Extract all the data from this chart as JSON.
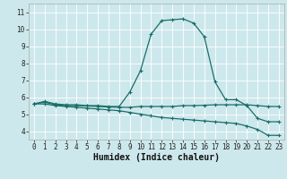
{
  "xlabel": "Humidex (Indice chaleur)",
  "bg_color": "#cde8ec",
  "grid_color": "#b8d8dc",
  "line_color": "#1a6e6a",
  "xlim": [
    -0.5,
    23.5
  ],
  "ylim": [
    3.5,
    11.5
  ],
  "xticks": [
    0,
    1,
    2,
    3,
    4,
    5,
    6,
    7,
    8,
    9,
    10,
    11,
    12,
    13,
    14,
    15,
    16,
    17,
    18,
    19,
    20,
    21,
    22,
    23
  ],
  "yticks": [
    4,
    5,
    6,
    7,
    8,
    9,
    10,
    11
  ],
  "curve1_x": [
    0,
    1,
    2,
    3,
    4,
    5,
    6,
    7,
    8,
    9,
    10,
    11,
    12,
    13,
    14,
    15,
    16,
    17,
    18,
    19,
    20,
    21,
    22,
    23
  ],
  "curve1_y": [
    5.6,
    5.75,
    5.6,
    5.55,
    5.55,
    5.5,
    5.5,
    5.45,
    5.45,
    6.3,
    7.55,
    9.7,
    10.5,
    10.55,
    10.6,
    10.35,
    9.55,
    6.9,
    5.85,
    5.85,
    5.5,
    4.75,
    4.55,
    4.55
  ],
  "curve2_x": [
    0,
    1,
    2,
    3,
    4,
    5,
    6,
    7,
    8,
    9,
    10,
    11,
    12,
    13,
    14,
    15,
    16,
    17,
    18,
    19,
    20,
    21,
    22,
    23
  ],
  "curve2_y": [
    5.6,
    5.7,
    5.55,
    5.5,
    5.5,
    5.48,
    5.45,
    5.42,
    5.4,
    5.4,
    5.45,
    5.45,
    5.45,
    5.45,
    5.5,
    5.5,
    5.52,
    5.55,
    5.55,
    5.55,
    5.55,
    5.5,
    5.45,
    5.45
  ],
  "curve3_x": [
    0,
    1,
    2,
    3,
    4,
    5,
    6,
    7,
    8,
    9,
    10,
    11,
    12,
    13,
    14,
    15,
    16,
    17,
    18,
    19,
    20,
    21,
    22,
    23
  ],
  "curve3_y": [
    5.6,
    5.6,
    5.5,
    5.45,
    5.4,
    5.35,
    5.3,
    5.25,
    5.2,
    5.1,
    5.0,
    4.9,
    4.8,
    4.75,
    4.7,
    4.65,
    4.6,
    4.55,
    4.5,
    4.45,
    4.3,
    4.1,
    3.75,
    3.75
  ],
  "marker": "+",
  "marker_size": 3,
  "linewidth": 0.9,
  "tick_fontsize": 5.5,
  "label_fontsize": 7.0
}
